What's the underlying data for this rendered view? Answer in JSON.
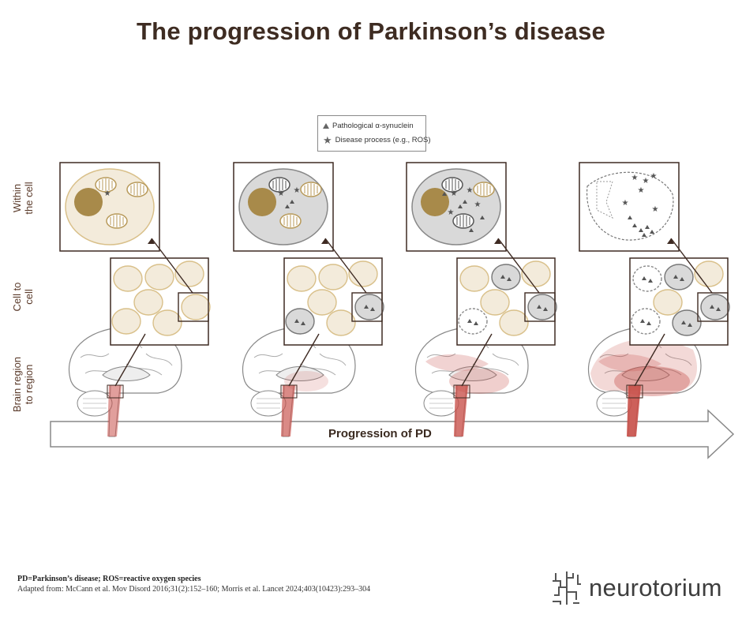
{
  "title": "The progression of Parkinson’s disease",
  "legend": {
    "item1": "Pathological α-synuclein",
    "item2": "Disease process (e.g., ROS)"
  },
  "row_labels": {
    "within": [
      "Within",
      "the cell"
    ],
    "cell": [
      "Cell to",
      "cell"
    ],
    "brain": [
      "Brain region",
      "to region"
    ]
  },
  "arrow_label": "Progression of PD",
  "footnote": {
    "line1": "PD=Parkinson’s disease; ROS=reactive oxygen species",
    "line2": "Adapted from: McCann et al. Mov Disord 2016;31(2):152–160; Morris et al. Lancet 2024;403(10423):293–304"
  },
  "brand": "neurotorium",
  "colors": {
    "healthy": "#d9c08a",
    "healthy_fill": "#f3ebdb",
    "diseased_fill": "#d9d9d9",
    "nucleus": "#a88a4a",
    "frame": "#3e2a22",
    "lesion": "#c8504a"
  },
  "icons": [
    "triangle-icon",
    "star-icon",
    "logo-icon",
    "arrow-icon"
  ]
}
